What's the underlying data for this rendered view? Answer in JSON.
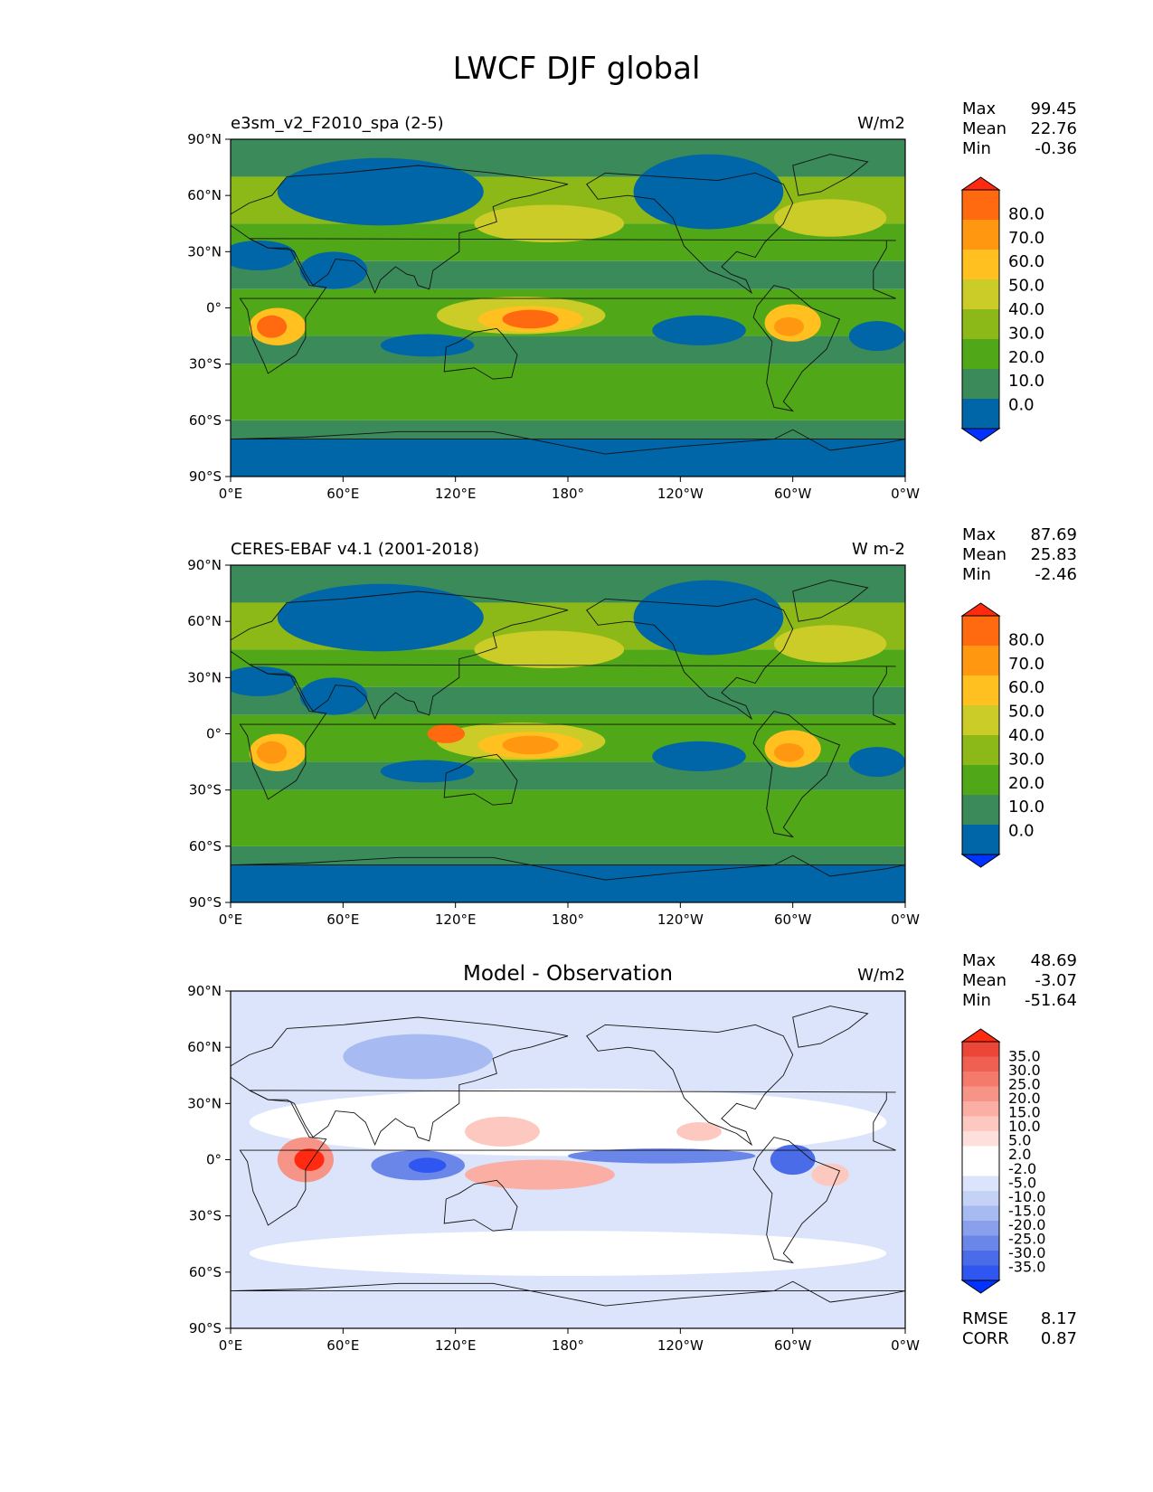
{
  "title": "LWCF DJF global",
  "axes": {
    "lat_ticks": [
      "90°N",
      "60°N",
      "30°N",
      "0°",
      "30°S",
      "60°S",
      "90°S"
    ],
    "lon_ticks": [
      "0°E",
      "60°E",
      "120°E",
      "180°",
      "120°W",
      "60°W",
      "0°W"
    ]
  },
  "palettes": {
    "abs": [
      "#0033ff",
      "#0066a8",
      "#3a8a5a",
      "#50a818",
      "#8cb818",
      "#cccc28",
      "#ffc020",
      "#ff9810",
      "#ff6a10",
      "#ff2a10"
    ],
    "diff": [
      "#0033ff",
      "#2f56f0",
      "#4a6ce8",
      "#6a86e8",
      "#8aa0ec",
      "#a8baf2",
      "#c4d2f6",
      "#dbe4fa",
      "#ffffff",
      "#ffffff",
      "#fde0dc",
      "#fcc8c0",
      "#faaea4",
      "#f79488",
      "#f47a6c",
      "#f06052",
      "#ec4638",
      "#ff2a10"
    ]
  },
  "chart_data": [
    {
      "type": "heatmap",
      "panel_title": "e3sm_v2_F2010_spa (2-5)",
      "units": "W/m2",
      "stats": {
        "max_label": "Max",
        "max": "99.45",
        "mean_label": "Mean",
        "mean": "22.76",
        "min_label": "Min",
        "min": "-0.36"
      },
      "colorbar_levels": [
        "80.0",
        "70.0",
        "60.0",
        "50.0",
        "40.0",
        "30.0",
        "20.0",
        "10.0",
        "0.0"
      ],
      "xlim": [
        0,
        360
      ],
      "ylim": [
        -90,
        90
      ]
    },
    {
      "type": "heatmap",
      "panel_title": "CERES-EBAF v4.1 (2001-2018)",
      "units": "W m-2",
      "stats": {
        "max_label": "Max",
        "max": "87.69",
        "mean_label": "Mean",
        "mean": "25.83",
        "min_label": "Min",
        "min": "-2.46"
      },
      "colorbar_levels": [
        "80.0",
        "70.0",
        "60.0",
        "50.0",
        "40.0",
        "30.0",
        "20.0",
        "10.0",
        "0.0"
      ],
      "xlim": [
        0,
        360
      ],
      "ylim": [
        -90,
        90
      ]
    },
    {
      "type": "heatmap",
      "panel_title": "Model - Observation",
      "units": "W/m2",
      "stats": {
        "max_label": "Max",
        "max": "48.69",
        "mean_label": "Mean",
        "mean": "-3.07",
        "min_label": "Min",
        "min": "-51.64"
      },
      "colorbar_levels": [
        "35.0",
        "30.0",
        "25.0",
        "20.0",
        "15.0",
        "10.0",
        "5.0",
        "2.0",
        "-2.0",
        "-5.0",
        "-10.0",
        "-15.0",
        "-20.0",
        "-25.0",
        "-30.0",
        "-35.0"
      ],
      "xlim": [
        0,
        360
      ],
      "ylim": [
        -90,
        90
      ],
      "extra_stats": {
        "rmse_label": "RMSE",
        "rmse": "8.17",
        "corr_label": "CORR",
        "corr": "0.87"
      }
    }
  ]
}
